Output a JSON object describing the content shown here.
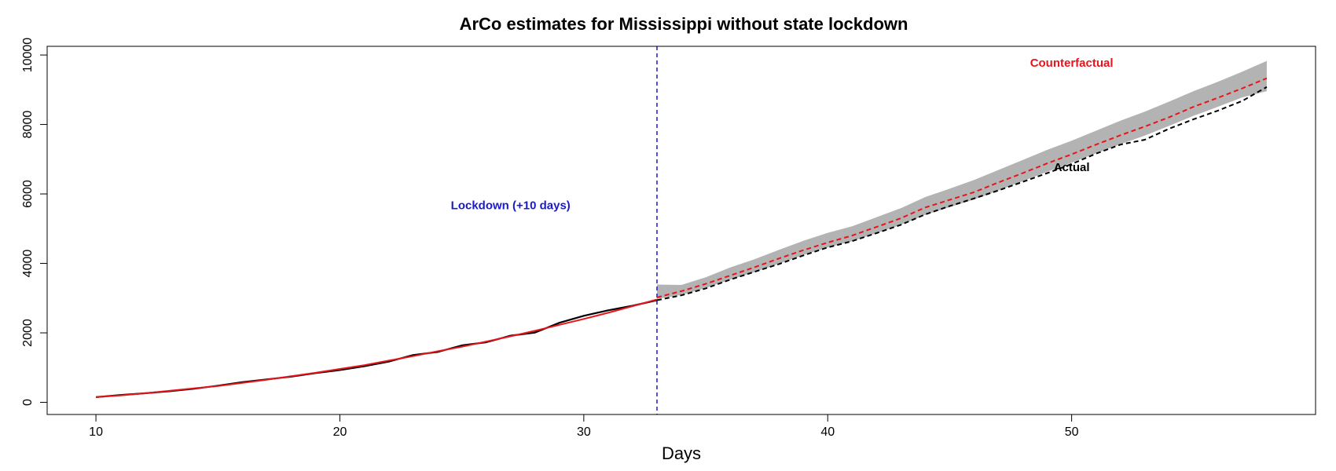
{
  "chart_data": {
    "type": "line",
    "title": "ArCo estimates for Mississippi without state lockdown",
    "xlabel": "Days",
    "ylabel": "",
    "xlim": [
      8,
      60
    ],
    "ylim": [
      -350,
      10250
    ],
    "x_ticks": [
      10,
      20,
      30,
      40,
      50
    ],
    "y_ticks": [
      0,
      2000,
      4000,
      6000,
      8000,
      10000
    ],
    "x_tick_labels": [
      "10",
      "20",
      "30",
      "40",
      "50"
    ],
    "y_tick_labels": [
      "0",
      "2000",
      "4000",
      "6000",
      "8000",
      "10000"
    ],
    "grid": false,
    "colors": {
      "actual": "#000000",
      "counterfactual": "#e8141c",
      "lockdown": "#1a1acd",
      "band": "#b3b3b3"
    },
    "lockdown_day": 33,
    "annotations": {
      "lockdown": {
        "text": "Lockdown (+10 days)",
        "x": 27,
        "y": 5650
      },
      "counterfactual": {
        "text": "Counterfactual",
        "x": 50,
        "y": 9750
      },
      "actual": {
        "text": "Actual",
        "x": 50,
        "y": 6750
      }
    },
    "series": [
      {
        "name": "Actual (pre-lockdown)",
        "x": [
          10,
          11,
          12,
          13,
          14,
          15,
          16,
          17,
          18,
          19,
          20,
          21,
          22,
          23,
          24,
          25,
          26,
          27,
          28,
          29,
          30,
          31,
          32,
          33
        ],
        "values": [
          150,
          210,
          260,
          320,
          390,
          480,
          580,
          660,
          740,
          840,
          930,
          1040,
          1170,
          1360,
          1450,
          1640,
          1730,
          1920,
          2010,
          2290,
          2490,
          2650,
          2780,
          2940
        ]
      },
      {
        "name": "Counterfactual (pre-lockdown)",
        "x": [
          10,
          11,
          12,
          13,
          14,
          15,
          16,
          17,
          18,
          19,
          20,
          21,
          22,
          23,
          24,
          25,
          26,
          27,
          28,
          29,
          30,
          31,
          32,
          33
        ],
        "values": [
          150,
          200,
          260,
          330,
          400,
          470,
          560,
          650,
          750,
          850,
          960,
          1070,
          1200,
          1330,
          1470,
          1600,
          1750,
          1900,
          2060,
          2230,
          2400,
          2580,
          2770,
          2960
        ]
      },
      {
        "name": "Actual",
        "x": [
          33,
          34,
          35,
          36,
          37,
          38,
          39,
          40,
          41,
          42,
          43,
          44,
          45,
          46,
          47,
          48,
          49,
          50,
          51,
          52,
          53,
          54,
          55,
          56,
          57,
          58
        ],
        "values": [
          2940,
          3080,
          3280,
          3530,
          3760,
          3980,
          4230,
          4460,
          4640,
          4870,
          5110,
          5410,
          5650,
          5870,
          6100,
          6350,
          6600,
          6860,
          7160,
          7420,
          7560,
          7880,
          8150,
          8400,
          8680,
          9080
        ]
      },
      {
        "name": "Counterfactual",
        "x": [
          33,
          34,
          35,
          36,
          37,
          38,
          39,
          40,
          41,
          42,
          43,
          44,
          45,
          46,
          47,
          48,
          49,
          50,
          51,
          52,
          53,
          54,
          55,
          56,
          57,
          58
        ],
        "values": [
          3020,
          3200,
          3410,
          3650,
          3890,
          4140,
          4380,
          4600,
          4800,
          5050,
          5300,
          5610,
          5830,
          6050,
          6330,
          6600,
          6880,
          7140,
          7420,
          7690,
          7940,
          8210,
          8510,
          8770,
          9040,
          9330
        ]
      }
    ],
    "band": {
      "name": "Confidence interval",
      "x": [
        33,
        34,
        35,
        36,
        37,
        38,
        39,
        40,
        41,
        42,
        43,
        44,
        45,
        46,
        47,
        48,
        49,
        50,
        51,
        52,
        53,
        54,
        55,
        56,
        57,
        58
      ],
      "lower": [
        2980,
        3090,
        3290,
        3530,
        3750,
        3990,
        4240,
        4460,
        4640,
        4870,
        5110,
        5400,
        5620,
        5840,
        6100,
        6370,
        6640,
        6900,
        7170,
        7430,
        7680,
        7960,
        8250,
        8510,
        8780,
        8960
      ],
      "upper": [
        3390,
        3380,
        3600,
        3880,
        4120,
        4390,
        4650,
        4880,
        5070,
        5330,
        5590,
        5910,
        6150,
        6400,
        6690,
        6980,
        7270,
        7530,
        7820,
        8110,
        8370,
        8660,
        8960,
        9230,
        9520,
        9830
      ]
    }
  }
}
